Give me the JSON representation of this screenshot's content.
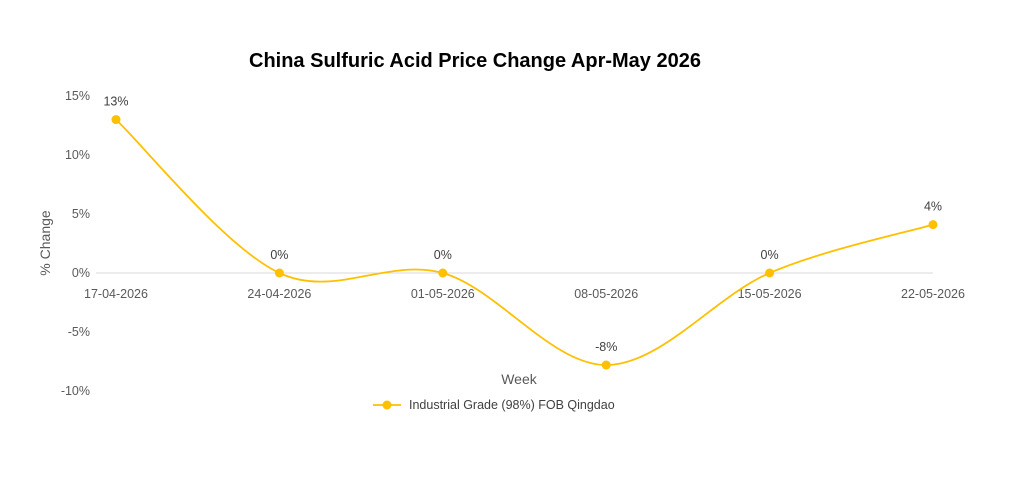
{
  "chart_data": {
    "type": "line",
    "title": "China Sulfuric Acid Price Change Apr-May 2026",
    "xlabel": "Week",
    "ylabel": "% Change",
    "categories": [
      "17-04-2026",
      "24-04-2026",
      "01-05-2026",
      "08-05-2026",
      "15-05-2026",
      "22-05-2026"
    ],
    "series": [
      {
        "name": "Industrial Grade (98%) FOB Qingdao",
        "values": [
          13.0,
          0.0,
          0.0,
          -7.8,
          0.0,
          4.1
        ],
        "data_labels": [
          "13%",
          "0%",
          "0%",
          "-8%",
          "0%",
          "4%"
        ],
        "color": "#FFC000"
      }
    ],
    "ylim": [
      -10,
      15
    ],
    "y_ticks": [
      15,
      10,
      5,
      0,
      -5,
      -10
    ],
    "y_tick_labels": [
      "15%",
      "10%",
      "5%",
      "0%",
      "-5%",
      "-10%"
    ],
    "smooth": true,
    "grid": false,
    "legend_position": "bottom"
  }
}
